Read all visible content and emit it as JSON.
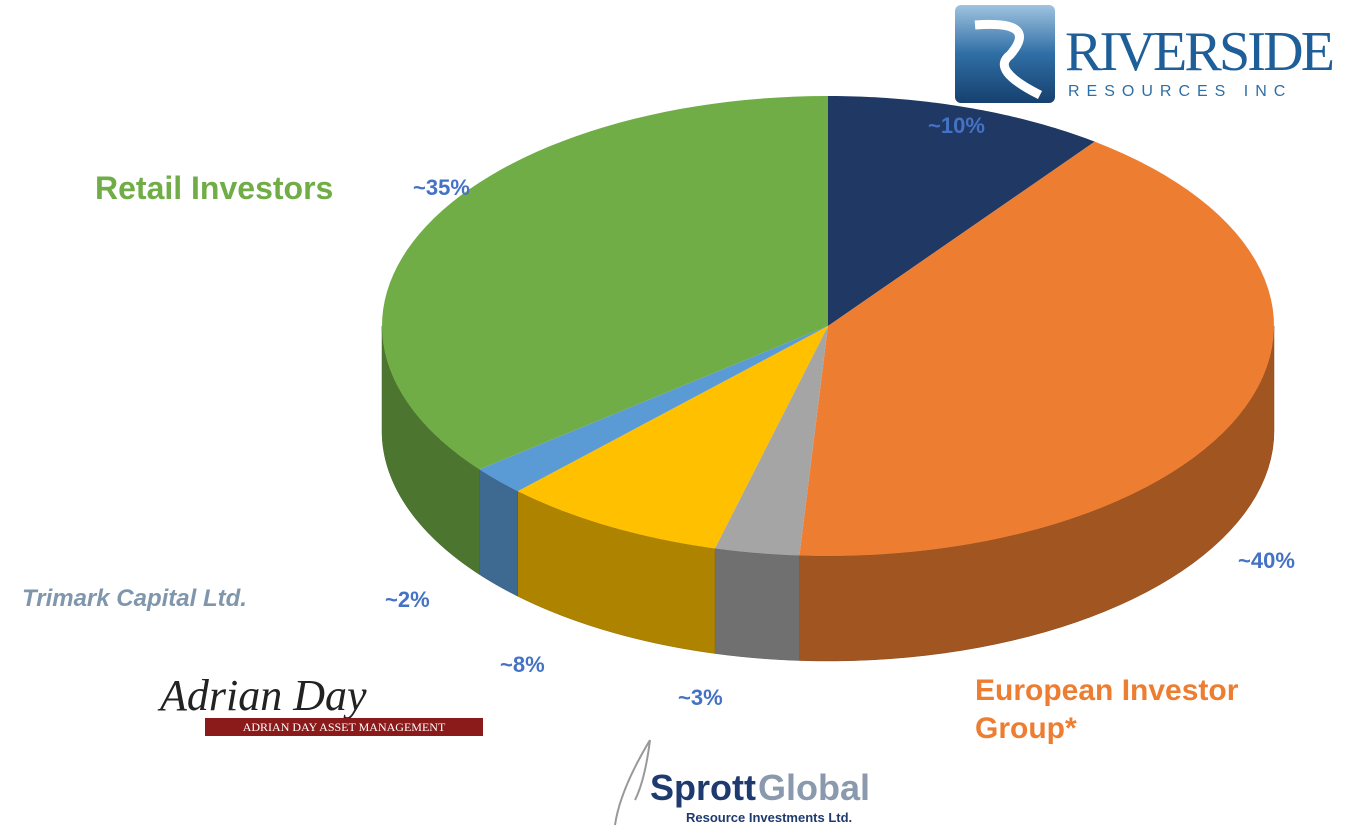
{
  "chart_data": {
    "type": "pie",
    "categories": [
      null,
      "European Investor Group*",
      null,
      null,
      "Trimark Capital Ltd.",
      "Retail Investors"
    ],
    "values": [
      10,
      40,
      3,
      8,
      2,
      35
    ],
    "value_labels": [
      "~10%",
      "~40%",
      "~3%",
      "~8%",
      "~2%",
      "~35%"
    ],
    "colors": [
      "#1f3864",
      "#ed7d31",
      "#a5a5a5",
      "#ffc000",
      "#5b9bd5",
      "#70ad47"
    ]
  },
  "logos": {
    "riverside": {
      "name": "RIVERSIDE",
      "tagline": "RESOURCES INC"
    },
    "adrian_day": {
      "signature": "Adrian Day",
      "name": "ADRIAN DAY ASSET MANAGEMENT"
    },
    "sprott": {
      "name1": "Sprott",
      "name2": "Global",
      "tagline": "Resource Investments Ltd."
    }
  }
}
